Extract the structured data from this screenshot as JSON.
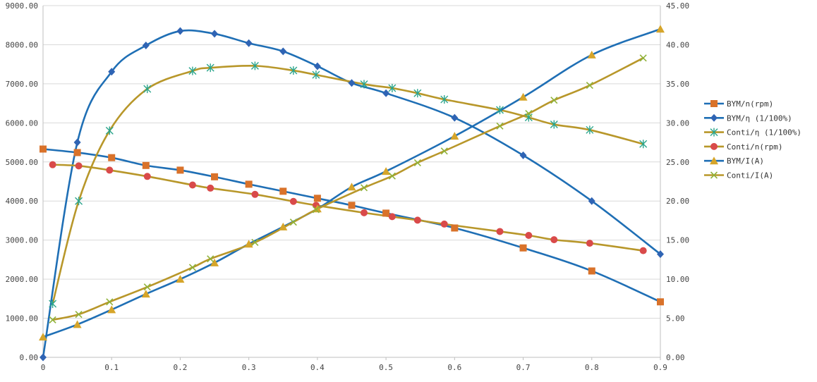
{
  "chart_data": {
    "type": "line",
    "title": "",
    "xlabel": "",
    "ylabel": "",
    "y2label": "",
    "grid": true,
    "legend_position": "right",
    "xlim": [
      0,
      0.9
    ],
    "ylim": [
      0,
      9000
    ],
    "y2lim": [
      0,
      45
    ],
    "x_ticks": [
      "0",
      "0.1",
      "0.2",
      "0.3",
      "0.4",
      "0.5",
      "0.6",
      "0.7",
      "0.8",
      "0.9"
    ],
    "x_tick_values": [
      0,
      0.1,
      0.2,
      0.3,
      0.4,
      0.5,
      0.6,
      0.7,
      0.8,
      0.9
    ],
    "y_ticks": [
      "0.00",
      "1000.00",
      "2000.00",
      "3000.00",
      "4000.00",
      "5000.00",
      "6000.00",
      "7000.00",
      "8000.00",
      "9000.00"
    ],
    "y_tick_values": [
      0,
      1000,
      2000,
      3000,
      4000,
      5000,
      6000,
      7000,
      8000,
      9000
    ],
    "y2_ticks": [
      "0.00",
      "5.00",
      "10.00",
      "15.00",
      "20.00",
      "25.00",
      "30.00",
      "35.00",
      "40.00",
      "45.00"
    ],
    "y2_tick_values": [
      0,
      5,
      10,
      15,
      20,
      25,
      30,
      35,
      40,
      45
    ],
    "series": [
      {
        "name": "BYM/n(rpm)",
        "axis": "left",
        "color": "#1f6fb5",
        "marker_color": "#d9722a",
        "marker": "square",
        "points": [
          [
            0,
            5330
          ],
          [
            0.05,
            5240
          ],
          [
            0.1,
            5110
          ],
          [
            0.15,
            4910
          ],
          [
            0.2,
            4790
          ],
          [
            0.25,
            4620
          ],
          [
            0.3,
            4430
          ],
          [
            0.35,
            4250
          ],
          [
            0.4,
            4070
          ],
          [
            0.45,
            3890
          ],
          [
            0.5,
            3690
          ],
          [
            0.6,
            3310
          ],
          [
            0.7,
            2800
          ],
          [
            0.8,
            2210
          ],
          [
            0.9,
            1420
          ]
        ]
      },
      {
        "name": "BYM/η (1/100%)",
        "axis": "left",
        "color": "#1f6fb5",
        "marker_color": "#2f64b4",
        "marker": "diamond",
        "points": [
          [
            0,
            0
          ],
          [
            0.05,
            5500
          ],
          [
            0.1,
            7310
          ],
          [
            0.15,
            7980
          ],
          [
            0.2,
            8350
          ],
          [
            0.25,
            8280
          ],
          [
            0.3,
            8040
          ],
          [
            0.35,
            7830
          ],
          [
            0.4,
            7450
          ],
          [
            0.45,
            7020
          ],
          [
            0.5,
            6760
          ],
          [
            0.6,
            6130
          ],
          [
            0.7,
            5170
          ],
          [
            0.8,
            4000
          ],
          [
            0.9,
            2640
          ]
        ]
      },
      {
        "name": "Conti/η (1/100%)",
        "axis": "left",
        "color": "#b8972a",
        "marker_color": "#2aa58c",
        "marker": "star",
        "points": [
          [
            0.014,
            1370
          ],
          [
            0.052,
            4000
          ],
          [
            0.097,
            5800
          ],
          [
            0.152,
            6870
          ],
          [
            0.218,
            7330
          ],
          [
            0.244,
            7410
          ],
          [
            0.309,
            7460
          ],
          [
            0.365,
            7340
          ],
          [
            0.398,
            7230
          ],
          [
            0.468,
            6990
          ],
          [
            0.509,
            6890
          ],
          [
            0.546,
            6760
          ],
          [
            0.585,
            6600
          ],
          [
            0.666,
            6330
          ],
          [
            0.708,
            6140
          ],
          [
            0.745,
            5960
          ],
          [
            0.797,
            5820
          ],
          [
            0.875,
            5460
          ]
        ]
      },
      {
        "name": "Conti/n(rpm)",
        "axis": "left",
        "color": "#b8972a",
        "marker_color": "#d94a4a",
        "marker": "circle",
        "points": [
          [
            0.014,
            4930
          ],
          [
            0.052,
            4900
          ],
          [
            0.097,
            4790
          ],
          [
            0.152,
            4630
          ],
          [
            0.218,
            4410
          ],
          [
            0.244,
            4330
          ],
          [
            0.309,
            4170
          ],
          [
            0.365,
            3990
          ],
          [
            0.398,
            3890
          ],
          [
            0.468,
            3700
          ],
          [
            0.509,
            3600
          ],
          [
            0.546,
            3510
          ],
          [
            0.585,
            3410
          ],
          [
            0.666,
            3220
          ],
          [
            0.708,
            3120
          ],
          [
            0.745,
            3010
          ],
          [
            0.797,
            2920
          ],
          [
            0.875,
            2730
          ]
        ]
      },
      {
        "name": "BYM/I(A)",
        "axis": "right",
        "color": "#1f6fb5",
        "marker_color": "#d6a52a",
        "marker": "triangle",
        "points": [
          [
            0,
            2.6
          ],
          [
            0.05,
            4.2
          ],
          [
            0.1,
            6.1
          ],
          [
            0.15,
            8.1
          ],
          [
            0.2,
            10.0
          ],
          [
            0.25,
            12.1
          ],
          [
            0.3,
            14.5
          ],
          [
            0.35,
            16.7
          ],
          [
            0.4,
            19.0
          ],
          [
            0.45,
            21.8
          ],
          [
            0.5,
            23.8
          ],
          [
            0.6,
            28.3
          ],
          [
            0.7,
            33.3
          ],
          [
            0.8,
            38.7
          ],
          [
            0.9,
            42.0
          ]
        ]
      },
      {
        "name": "Conti/I(A)",
        "axis": "right",
        "color": "#b8972a",
        "marker_color": "#8fb23a",
        "marker": "x",
        "points": [
          [
            0.014,
            4.8
          ],
          [
            0.052,
            5.5
          ],
          [
            0.097,
            7.1
          ],
          [
            0.152,
            9.0
          ],
          [
            0.218,
            11.5
          ],
          [
            0.244,
            12.6
          ],
          [
            0.309,
            14.7
          ],
          [
            0.365,
            17.3
          ],
          [
            0.398,
            18.9
          ],
          [
            0.468,
            21.7
          ],
          [
            0.509,
            23.2
          ],
          [
            0.546,
            24.9
          ],
          [
            0.585,
            26.4
          ],
          [
            0.666,
            29.6
          ],
          [
            0.708,
            31.2
          ],
          [
            0.745,
            32.9
          ],
          [
            0.797,
            34.8
          ],
          [
            0.875,
            38.3
          ]
        ]
      }
    ]
  }
}
